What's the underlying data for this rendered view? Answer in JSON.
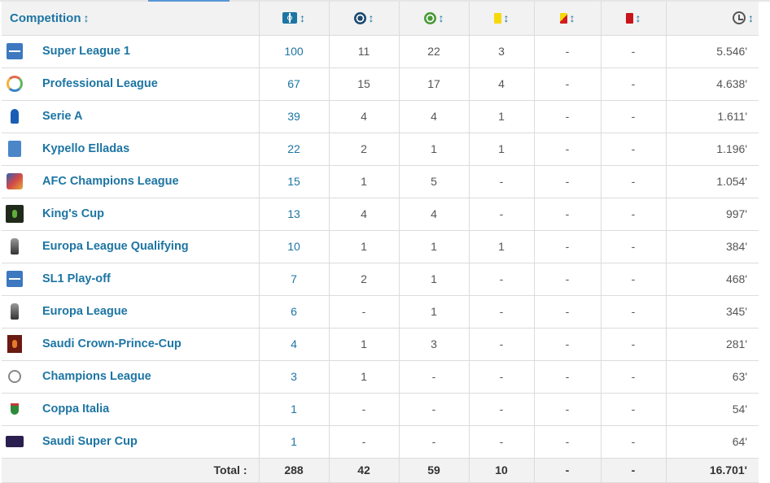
{
  "header": {
    "competition_label": "Competition",
    "sort_glyph": "↕",
    "icons": [
      "field-icon",
      "goal-icon",
      "assist-icon",
      "yellow-card-icon",
      "second-yellow-icon",
      "red-card-icon",
      "clock-icon"
    ]
  },
  "colors": {
    "link": "#1d75a3",
    "header_bg": "#f2f2f2",
    "yellow_card": "#f5d90a",
    "red_card": "#c8151b"
  },
  "rows": [
    {
      "logo": "super-league-logo",
      "name": "Super League 1",
      "apps": "100",
      "goals": "11",
      "assists": "22",
      "yellow": "3",
      "second_yellow": "-",
      "red": "-",
      "minutes": "5.546'"
    },
    {
      "logo": "professional-league-logo",
      "name": "Professional League",
      "apps": "67",
      "goals": "15",
      "assists": "17",
      "yellow": "4",
      "second_yellow": "-",
      "red": "-",
      "minutes": "4.638'"
    },
    {
      "logo": "serie-a-logo",
      "name": "Serie A",
      "apps": "39",
      "goals": "4",
      "assists": "4",
      "yellow": "1",
      "second_yellow": "-",
      "red": "-",
      "minutes": "1.611'"
    },
    {
      "logo": "kypello-logo",
      "name": "Kypello Elladas",
      "apps": "22",
      "goals": "2",
      "assists": "1",
      "yellow": "1",
      "second_yellow": "-",
      "red": "-",
      "minutes": "1.196'"
    },
    {
      "logo": "afc-logo",
      "name": "AFC Champions League",
      "apps": "15",
      "goals": "1",
      "assists": "5",
      "yellow": "-",
      "second_yellow": "-",
      "red": "-",
      "minutes": "1.054'"
    },
    {
      "logo": "kings-cup-logo",
      "name": "King's Cup",
      "apps": "13",
      "goals": "4",
      "assists": "4",
      "yellow": "-",
      "second_yellow": "-",
      "red": "-",
      "minutes": "997'"
    },
    {
      "logo": "europa-league-logo",
      "name": "Europa League Qualifying",
      "apps": "10",
      "goals": "1",
      "assists": "1",
      "yellow": "1",
      "second_yellow": "-",
      "red": "-",
      "minutes": "384'"
    },
    {
      "logo": "super-league-logo",
      "name": "SL1 Play-off",
      "apps": "7",
      "goals": "2",
      "assists": "1",
      "yellow": "-",
      "second_yellow": "-",
      "red": "-",
      "minutes": "468'"
    },
    {
      "logo": "europa-league-logo",
      "name": "Europa League",
      "apps": "6",
      "goals": "-",
      "assists": "1",
      "yellow": "-",
      "second_yellow": "-",
      "red": "-",
      "minutes": "345'"
    },
    {
      "logo": "saudi-crown-prince-logo",
      "name": "Saudi Crown-Prince-Cup",
      "apps": "4",
      "goals": "1",
      "assists": "3",
      "yellow": "-",
      "second_yellow": "-",
      "red": "-",
      "minutes": "281'"
    },
    {
      "logo": "champions-league-logo",
      "name": "Champions League",
      "apps": "3",
      "goals": "1",
      "assists": "-",
      "yellow": "-",
      "second_yellow": "-",
      "red": "-",
      "minutes": "63'"
    },
    {
      "logo": "coppa-italia-logo",
      "name": "Coppa Italia",
      "apps": "1",
      "goals": "-",
      "assists": "-",
      "yellow": "-",
      "second_yellow": "-",
      "red": "-",
      "minutes": "54'"
    },
    {
      "logo": "saudi-super-cup-logo",
      "name": "Saudi Super Cup",
      "apps": "1",
      "goals": "-",
      "assists": "-",
      "yellow": "-",
      "second_yellow": "-",
      "red": "-",
      "minutes": "64'"
    }
  ],
  "total": {
    "label": "Total :",
    "apps": "288",
    "goals": "42",
    "assists": "59",
    "yellow": "10",
    "second_yellow": "-",
    "red": "-",
    "minutes": "16.701'"
  }
}
